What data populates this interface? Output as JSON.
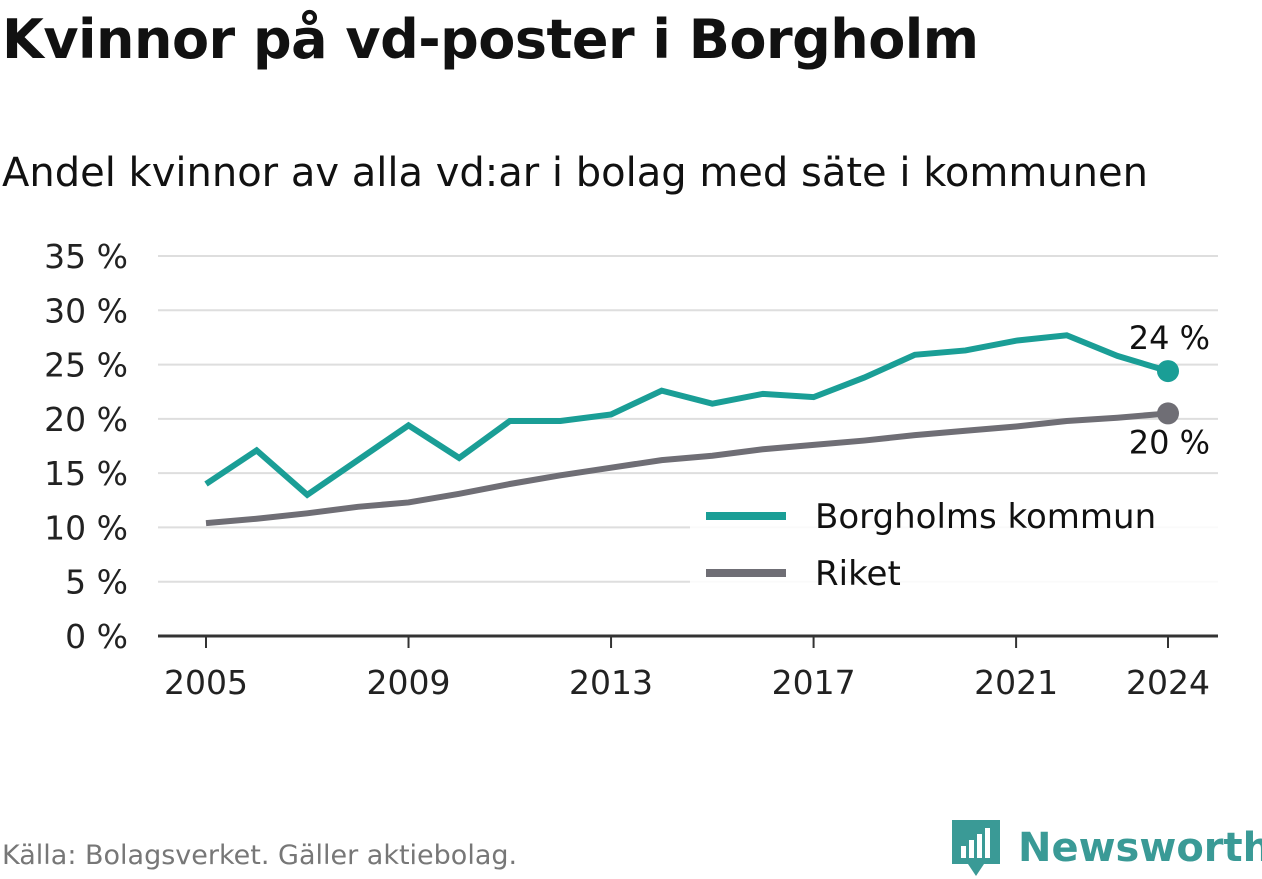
{
  "title": "Kvinnor på vd-poster i Borgholm",
  "subtitle": "Andel kvinnor av alla vd:ar i bolag med säte i kommunen",
  "source": "Källa: Bolagsverket. Gäller aktiebolag.",
  "brand": {
    "name": "Newsworthy",
    "icon": "newsworthy-logo-icon",
    "color": "#3a9a96"
  },
  "chart_data": {
    "type": "line",
    "x": [
      2005,
      2006,
      2007,
      2008,
      2009,
      2010,
      2011,
      2012,
      2013,
      2014,
      2015,
      2016,
      2017,
      2018,
      2019,
      2020,
      2021,
      2022,
      2023,
      2024
    ],
    "x_ticks": [
      2005,
      2009,
      2013,
      2017,
      2021,
      2024
    ],
    "y_ticks": [
      0,
      5,
      10,
      15,
      20,
      25,
      30,
      35
    ],
    "y_tick_labels": [
      "0 %",
      "5 %",
      "10 %",
      "15 %",
      "20 %",
      "25 %",
      "30 %",
      "35 %"
    ],
    "ylim": [
      0,
      35
    ],
    "xlim": [
      2004,
      2025
    ],
    "grid": true,
    "legend_position": "bottom-right",
    "series": [
      {
        "name": "Borgholms kommun",
        "color": "#1a9e96",
        "values": [
          14.0,
          17.1,
          13.0,
          16.2,
          19.4,
          16.4,
          19.8,
          19.8,
          20.4,
          22.6,
          21.4,
          22.3,
          22.0,
          23.8,
          25.9,
          26.3,
          27.2,
          27.7,
          25.8,
          24.4
        ],
        "end_label": "24 %"
      },
      {
        "name": "Riket",
        "color": "#6f6e75",
        "values": [
          10.4,
          10.8,
          11.3,
          11.9,
          12.3,
          13.1,
          14.0,
          14.8,
          15.5,
          16.2,
          16.6,
          17.2,
          17.6,
          18.0,
          18.5,
          18.9,
          19.3,
          19.8,
          20.1,
          20.5
        ],
        "end_label": "20 %"
      }
    ]
  }
}
